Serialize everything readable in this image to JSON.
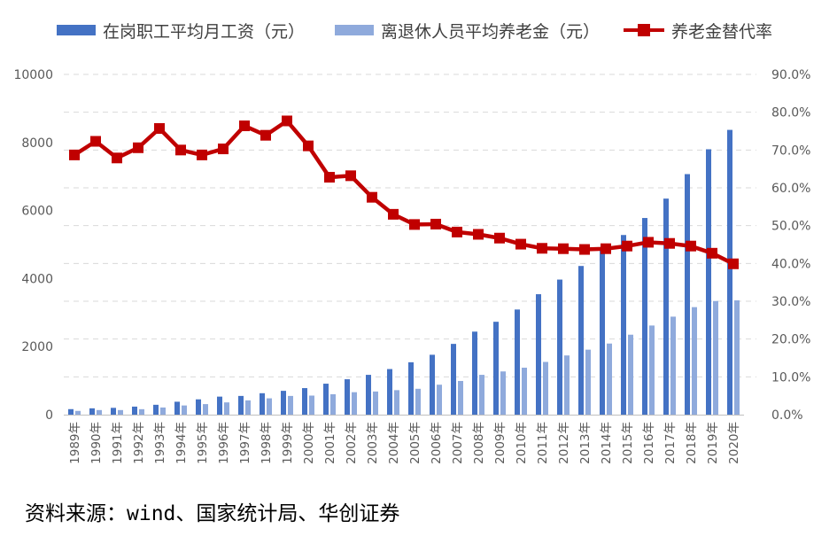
{
  "legend": {
    "wage_label": "在岗职工平均月工资（元）",
    "pension_label": "离退休人员平均养老金（元）",
    "rate_label": "养老金替代率"
  },
  "source": "资料来源：wind、国家统计局、华创证券",
  "colors": {
    "wage": "#4472C4",
    "pension": "#8FAADC",
    "rate": "#C00000",
    "grid": "#D9D9D9",
    "axis_text": "#595959"
  },
  "chart_data": {
    "type": "bar+line",
    "categories": [
      "1989年",
      "1990年",
      "1991年",
      "1992年",
      "1993年",
      "1994年",
      "1995年",
      "1996年",
      "1997年",
      "1998年",
      "1999年",
      "2000年",
      "2001年",
      "2002年",
      "2003年",
      "2004年",
      "2005年",
      "2006年",
      "2007年",
      "2008年",
      "2009年",
      "2010年",
      "2011年",
      "2012年",
      "2013年",
      "2014年",
      "2015年",
      "2016年",
      "2017年",
      "2018年",
      "2019年",
      "2020年"
    ],
    "series": [
      {
        "name": "在岗职工平均月工资（元）",
        "axis": "left",
        "kind": "bar",
        "values": [
          162,
          186,
          200,
          236,
          290,
          380,
          450,
          530,
          550,
          630,
          700,
          780,
          910,
          1040,
          1170,
          1340,
          1540,
          1760,
          2080,
          2440,
          2730,
          3090,
          3540,
          3970,
          4370,
          4900,
          5280,
          5780,
          6350,
          7070,
          7800,
          8370
        ]
      },
      {
        "name": "离退休人员平均养老金（元）",
        "axis": "left",
        "kind": "bar",
        "values": [
          110,
          135,
          135,
          160,
          210,
          270,
          310,
          360,
          420,
          480,
          550,
          560,
          600,
          660,
          680,
          720,
          760,
          880,
          990,
          1170,
          1270,
          1380,
          1550,
          1740,
          1910,
          2090,
          2350,
          2620,
          2880,
          3160,
          3340,
          3360
        ]
      },
      {
        "name": "养老金替代率",
        "axis": "right",
        "kind": "line",
        "values": [
          68.7,
          72.3,
          67.9,
          70.6,
          75.7,
          70.0,
          68.7,
          70.3,
          76.4,
          73.9,
          77.7,
          71.1,
          62.8,
          63.2,
          57.5,
          53.0,
          50.3,
          50.4,
          48.3,
          47.7,
          46.7,
          45.1,
          44.0,
          43.9,
          43.7,
          43.9,
          44.6,
          45.6,
          45.3,
          44.6,
          42.7,
          39.9
        ]
      }
    ],
    "y_left": {
      "min": 0,
      "max": 10000,
      "ticks": [
        "0",
        "2000",
        "4000",
        "6000",
        "8000",
        "10000"
      ]
    },
    "y_right": {
      "min": 0,
      "max": 90,
      "ticks": [
        "0.0%",
        "10.0%",
        "20.0%",
        "30.0%",
        "40.0%",
        "50.0%",
        "60.0%",
        "70.0%",
        "80.0%",
        "90.0%"
      ]
    },
    "grid": true,
    "legend_position": "top"
  }
}
